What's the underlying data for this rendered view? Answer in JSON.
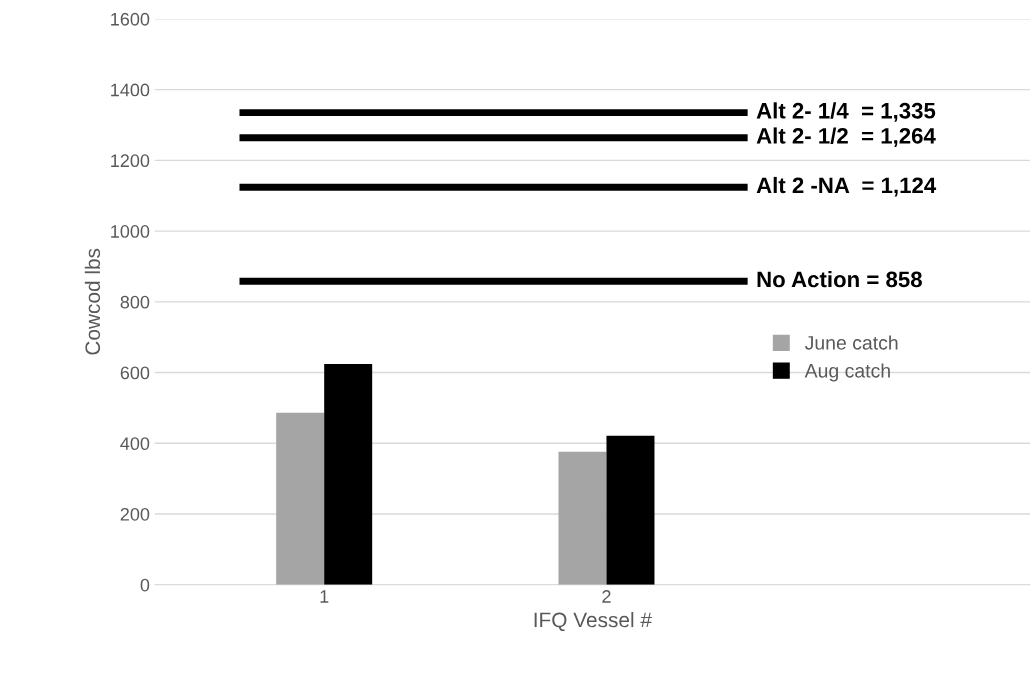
{
  "chart_data": {
    "type": "bar",
    "xlabel": "IFQ Vessel #",
    "ylabel": "Cowcod lbs",
    "categories": [
      "1",
      "2"
    ],
    "series": [
      {
        "name": "June catch",
        "color": "#a5a5a5",
        "values": [
          486,
          376
        ]
      },
      {
        "name": "Aug catch",
        "color": "#000000",
        "values": [
          624,
          421
        ]
      }
    ],
    "ylim": [
      0,
      1600
    ],
    "yticks": [
      0,
      200,
      400,
      600,
      800,
      1000,
      1200,
      1400,
      1600
    ],
    "grid": "y",
    "legend": "right",
    "ref_lines": [
      {
        "axis": "y",
        "value": 1335,
        "label": "Alt 2- 1/4  = 1,335",
        "color": "#000000"
      },
      {
        "axis": "y",
        "value": 1264,
        "label": "Alt 2- 1/2  = 1,264",
        "color": "#000000"
      },
      {
        "axis": "y",
        "value": 1124,
        "label": "Alt 2 -NA  = 1,124",
        "color": "#000000"
      },
      {
        "axis": "y",
        "value": 858,
        "label": "No Action = 858",
        "color": "#000000"
      }
    ]
  }
}
